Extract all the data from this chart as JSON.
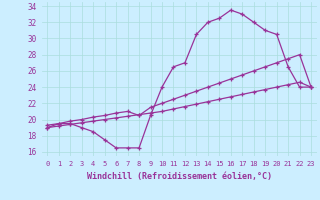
{
  "xlabel": "Windchill (Refroidissement éolien,°C)",
  "bg_color": "#cceeff",
  "line_color": "#993399",
  "xlim": [
    -0.5,
    23.5
  ],
  "ylim": [
    15.5,
    34.5
  ],
  "xticks": [
    0,
    1,
    2,
    3,
    4,
    5,
    6,
    7,
    8,
    9,
    10,
    11,
    12,
    13,
    14,
    15,
    16,
    17,
    18,
    19,
    20,
    21,
    22,
    23
  ],
  "yticks": [
    16,
    18,
    20,
    22,
    24,
    26,
    28,
    30,
    32,
    34
  ],
  "line1_x": [
    0,
    1,
    2,
    3,
    4,
    5,
    6,
    7,
    8,
    9,
    10,
    11,
    12,
    13,
    14,
    15,
    16,
    17,
    18,
    19,
    20,
    21,
    22,
    23
  ],
  "line1_y": [
    19.0,
    19.5,
    19.5,
    19.0,
    18.5,
    17.5,
    16.5,
    16.5,
    16.5,
    20.5,
    24.0,
    26.5,
    27.0,
    30.5,
    32.0,
    32.5,
    33.5,
    33.0,
    32.0,
    31.0,
    30.5,
    26.5,
    24.0,
    24.0
  ],
  "line2_x": [
    0,
    1,
    2,
    3,
    4,
    5,
    6,
    7,
    8,
    9,
    10,
    11,
    12,
    13,
    14,
    15,
    16,
    17,
    18,
    19,
    20,
    21,
    22,
    23
  ],
  "line2_y": [
    19.3,
    19.5,
    19.8,
    20.0,
    20.3,
    20.5,
    20.8,
    21.0,
    20.5,
    21.5,
    22.0,
    22.5,
    23.0,
    23.5,
    24.0,
    24.5,
    25.0,
    25.5,
    26.0,
    26.5,
    27.0,
    27.5,
    28.0,
    24.0
  ],
  "line3_x": [
    0,
    1,
    2,
    3,
    4,
    5,
    6,
    7,
    8,
    9,
    10,
    11,
    12,
    13,
    14,
    15,
    16,
    17,
    18,
    19,
    20,
    21,
    22,
    23
  ],
  "line3_y": [
    19.0,
    19.2,
    19.4,
    19.6,
    19.8,
    20.0,
    20.2,
    20.4,
    20.6,
    20.8,
    21.0,
    21.3,
    21.6,
    21.9,
    22.2,
    22.5,
    22.8,
    23.1,
    23.4,
    23.7,
    24.0,
    24.3,
    24.6,
    24.0
  ],
  "grid_color": "#aadddd",
  "marker": "+"
}
